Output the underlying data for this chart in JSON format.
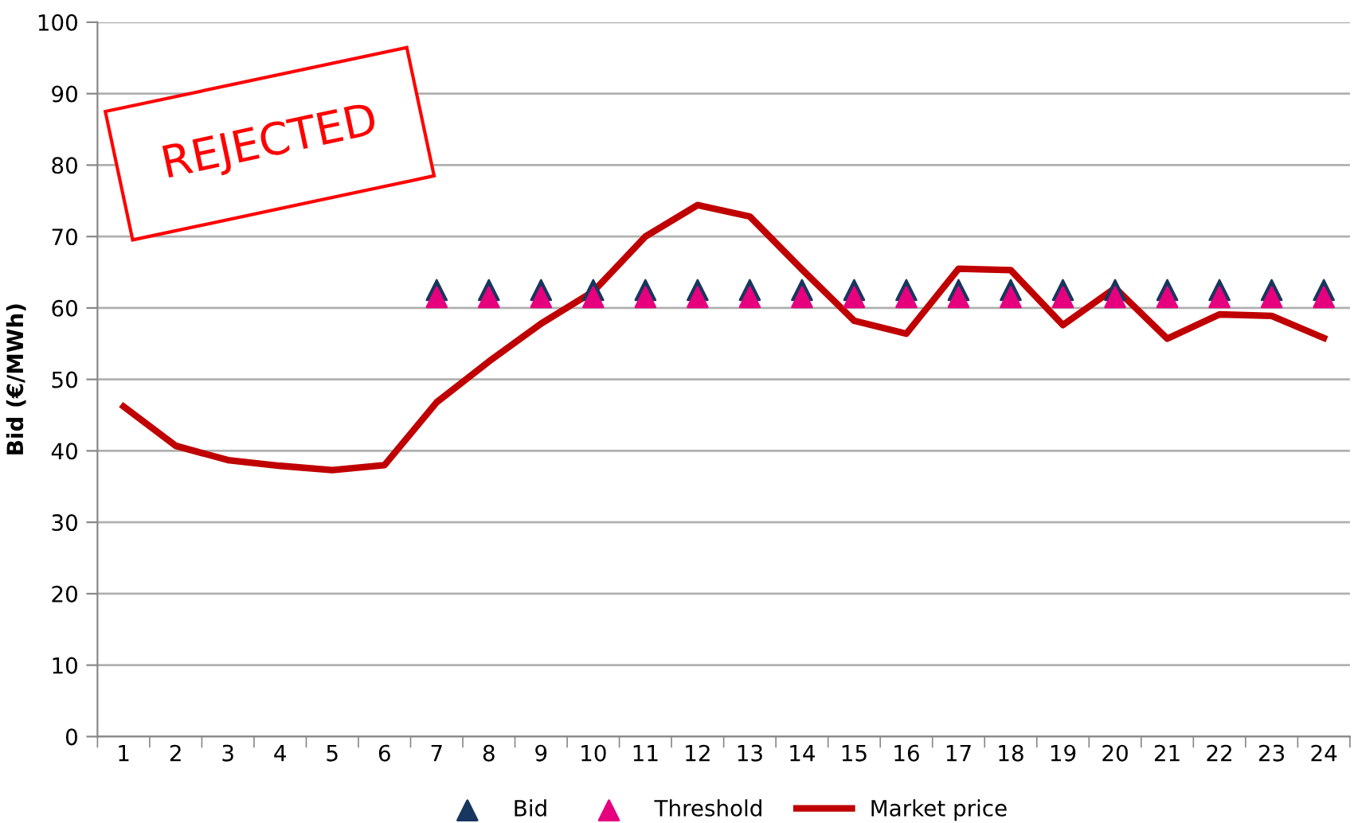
{
  "chart_data": {
    "type": "line",
    "ylabel": "Bid (€/MWh)",
    "categories": [
      "1",
      "2",
      "3",
      "4",
      "5",
      "6",
      "7",
      "8",
      "9",
      "10",
      "11",
      "12",
      "13",
      "14",
      "15",
      "16",
      "17",
      "18",
      "19",
      "20",
      "21",
      "22",
      "23",
      "24"
    ],
    "series": [
      {
        "name": "Bid",
        "type": "scatter",
        "color": "#17375e",
        "marker": "triangle",
        "values": [
          null,
          null,
          null,
          null,
          null,
          null,
          62.5,
          62.5,
          62.5,
          62.5,
          62.5,
          62.5,
          62.5,
          62.5,
          62.5,
          62.5,
          62.5,
          62.5,
          62.5,
          62.5,
          62.5,
          62.5,
          62.5,
          62.5
        ]
      },
      {
        "name": "Threshold",
        "type": "scatter",
        "color": "#e6007e",
        "marker": "triangle",
        "values": [
          null,
          null,
          null,
          null,
          null,
          null,
          61.5,
          61.5,
          61.5,
          61.5,
          61.5,
          61.5,
          61.5,
          61.5,
          61.5,
          61.5,
          61.5,
          61.5,
          61.5,
          61.5,
          61.5,
          61.5,
          61.5,
          61.5
        ]
      },
      {
        "name": "Market price",
        "color": "#c00000",
        "marker": "none",
        "line_style": "solid",
        "values": [
          46.2,
          40.7,
          38.7,
          37.9,
          37.3,
          38.0,
          46.8,
          52.5,
          57.8,
          62.3,
          70.0,
          74.4,
          72.8,
          65.4,
          58.2,
          56.4,
          65.5,
          65.3,
          57.6,
          62.8,
          55.7,
          59.1,
          58.9,
          55.8
        ]
      }
    ],
    "ylim": [
      0,
      100
    ],
    "yticks": [
      0,
      10,
      20,
      30,
      40,
      50,
      60,
      70,
      80,
      90,
      100
    ],
    "grid": "y",
    "legend": "bottom",
    "annotations": [
      "REJECTED"
    ]
  }
}
